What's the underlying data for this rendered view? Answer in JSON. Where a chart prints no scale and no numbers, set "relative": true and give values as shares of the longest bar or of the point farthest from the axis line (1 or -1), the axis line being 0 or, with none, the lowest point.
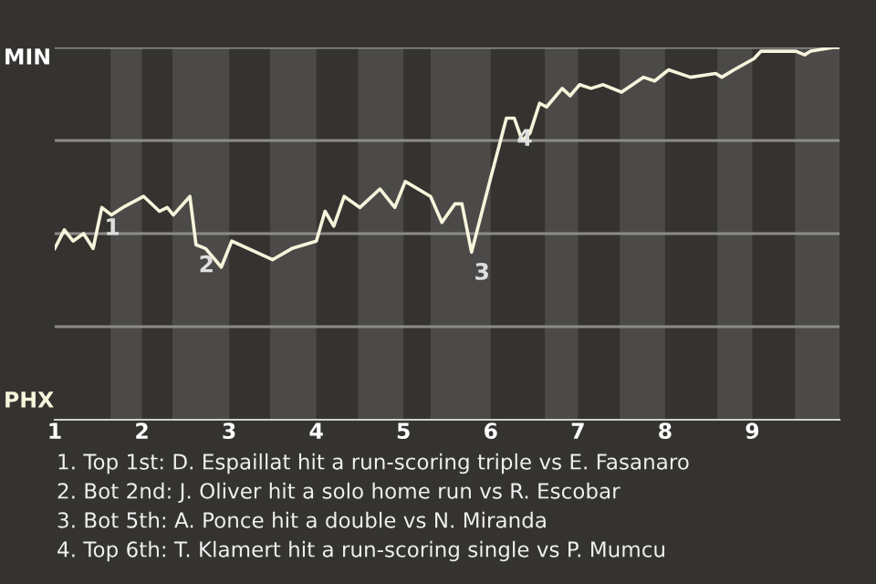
{
  "chart_data": {
    "type": "line",
    "relative": true,
    "x": [
      1.0,
      1.11,
      1.21,
      1.33,
      1.44,
      1.54,
      1.65,
      1.78,
      2.02,
      2.2,
      2.29,
      2.36,
      2.55,
      2.62,
      2.73,
      2.91,
      3.03,
      3.5,
      3.72,
      4.0,
      4.1,
      4.2,
      4.32,
      4.5,
      4.73,
      4.9,
      5.02,
      5.31,
      5.44,
      5.59,
      5.67,
      5.78,
      6.0,
      6.18,
      6.27,
      6.36,
      6.45,
      6.56,
      6.64,
      6.82,
      6.91,
      7.02,
      7.15,
      7.29,
      7.5,
      7.75,
      7.88,
      8.04,
      8.29,
      8.58,
      8.65,
      8.79,
      9.02,
      9.1,
      9.36,
      9.5,
      9.6,
      9.67,
      9.93,
      10.0
    ],
    "series": [
      {
        "color": "#f7f4dc",
        "values": [
          0.46,
          0.51,
          0.48,
          0.5,
          0.46,
          0.57,
          0.55,
          0.57,
          0.6,
          0.56,
          0.57,
          0.55,
          0.6,
          0.47,
          0.46,
          0.41,
          0.48,
          0.43,
          0.46,
          0.48,
          0.56,
          0.52,
          0.6,
          0.57,
          0.62,
          0.57,
          0.64,
          0.6,
          0.53,
          0.58,
          0.58,
          0.45,
          0.65,
          0.81,
          0.81,
          0.75,
          0.77,
          0.85,
          0.84,
          0.89,
          0.87,
          0.9,
          0.89,
          0.9,
          0.88,
          0.92,
          0.91,
          0.94,
          0.92,
          0.93,
          0.92,
          0.94,
          0.97,
          0.99,
          0.99,
          0.99,
          0.98,
          0.99,
          1.0,
          1.0
        ]
      }
    ],
    "xlim": [
      1,
      10
    ],
    "xticks": [
      1,
      2,
      3,
      4,
      5,
      6,
      7,
      8,
      9
    ],
    "ref_lines": [
      {
        "axis": "y",
        "value": 0.25,
        "color": "#8c8b88"
      },
      {
        "axis": "y",
        "value": 0.5,
        "color": "#8c8b88"
      },
      {
        "axis": "y",
        "value": 0.75,
        "color": "#8c8b88"
      },
      {
        "axis": "y",
        "value": 1,
        "color": "#8c8b88"
      }
    ],
    "bands": [
      {
        "axis": "x",
        "from": 1.64,
        "to": 2,
        "color": "#4b4a48"
      },
      {
        "axis": "x",
        "from": 2.35,
        "to": 3,
        "color": "#4b4a48"
      },
      {
        "axis": "x",
        "from": 3.47,
        "to": 4,
        "color": "#4b4a48"
      },
      {
        "axis": "x",
        "from": 4.48,
        "to": 5,
        "color": "#4b4a48"
      },
      {
        "axis": "x",
        "from": 5.31,
        "to": 6,
        "color": "#4b4a48"
      },
      {
        "axis": "x",
        "from": 6.62,
        "to": 7,
        "color": "#4b4a48"
      },
      {
        "axis": "x",
        "from": 7.48,
        "to": 8,
        "color": "#4b4a48"
      },
      {
        "axis": "x",
        "from": 8.6,
        "to": 9,
        "color": "#4b4a48"
      },
      {
        "axis": "x",
        "from": 9.49,
        "to": 10,
        "color": "#4b4a48"
      }
    ],
    "annotations": [
      "MIN",
      "PHX",
      {
        "text": "1",
        "x": 1.54,
        "y": 0.57
      },
      {
        "text": "2",
        "x": 2.62,
        "y": 0.47
      },
      {
        "text": "3",
        "x": 5.78,
        "y": 0.45
      },
      {
        "text": "4",
        "x": 6.27,
        "y": 0.81
      },
      "1. Top 1st: D. Espaillat hit a run-scoring triple vs E. Fasanaro",
      "2. Bot 2nd: J. Oliver hit a solo home run vs R. Escobar",
      "3. Bot 5th: A. Ponce hit a double vs N. Miranda",
      "4. Top 6th: T. Klamert hit a run-scoring single vs P. Mumcu"
    ]
  }
}
